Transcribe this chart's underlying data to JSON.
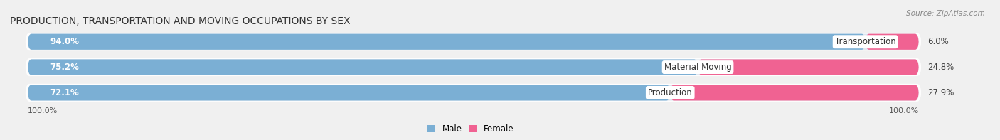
{
  "title": "PRODUCTION, TRANSPORTATION AND MOVING OCCUPATIONS BY SEX",
  "source": "Source: ZipAtlas.com",
  "categories": [
    "Transportation",
    "Material Moving",
    "Production"
  ],
  "male_values": [
    94.0,
    75.2,
    72.1
  ],
  "female_values": [
    6.0,
    24.8,
    27.9
  ],
  "male_color": "#7bafd4",
  "female_color": "#f06292",
  "bar_bg_color": "#dce6f0",
  "background_color": "#f0f0f0",
  "title_fontsize": 10,
  "source_fontsize": 7.5,
  "bar_label_fontsize": 8.5,
  "cat_label_fontsize": 8.5,
  "axis_label_fontsize": 8,
  "bar_height": 0.62,
  "x_left_label": "100.0%",
  "x_right_label": "100.0%"
}
